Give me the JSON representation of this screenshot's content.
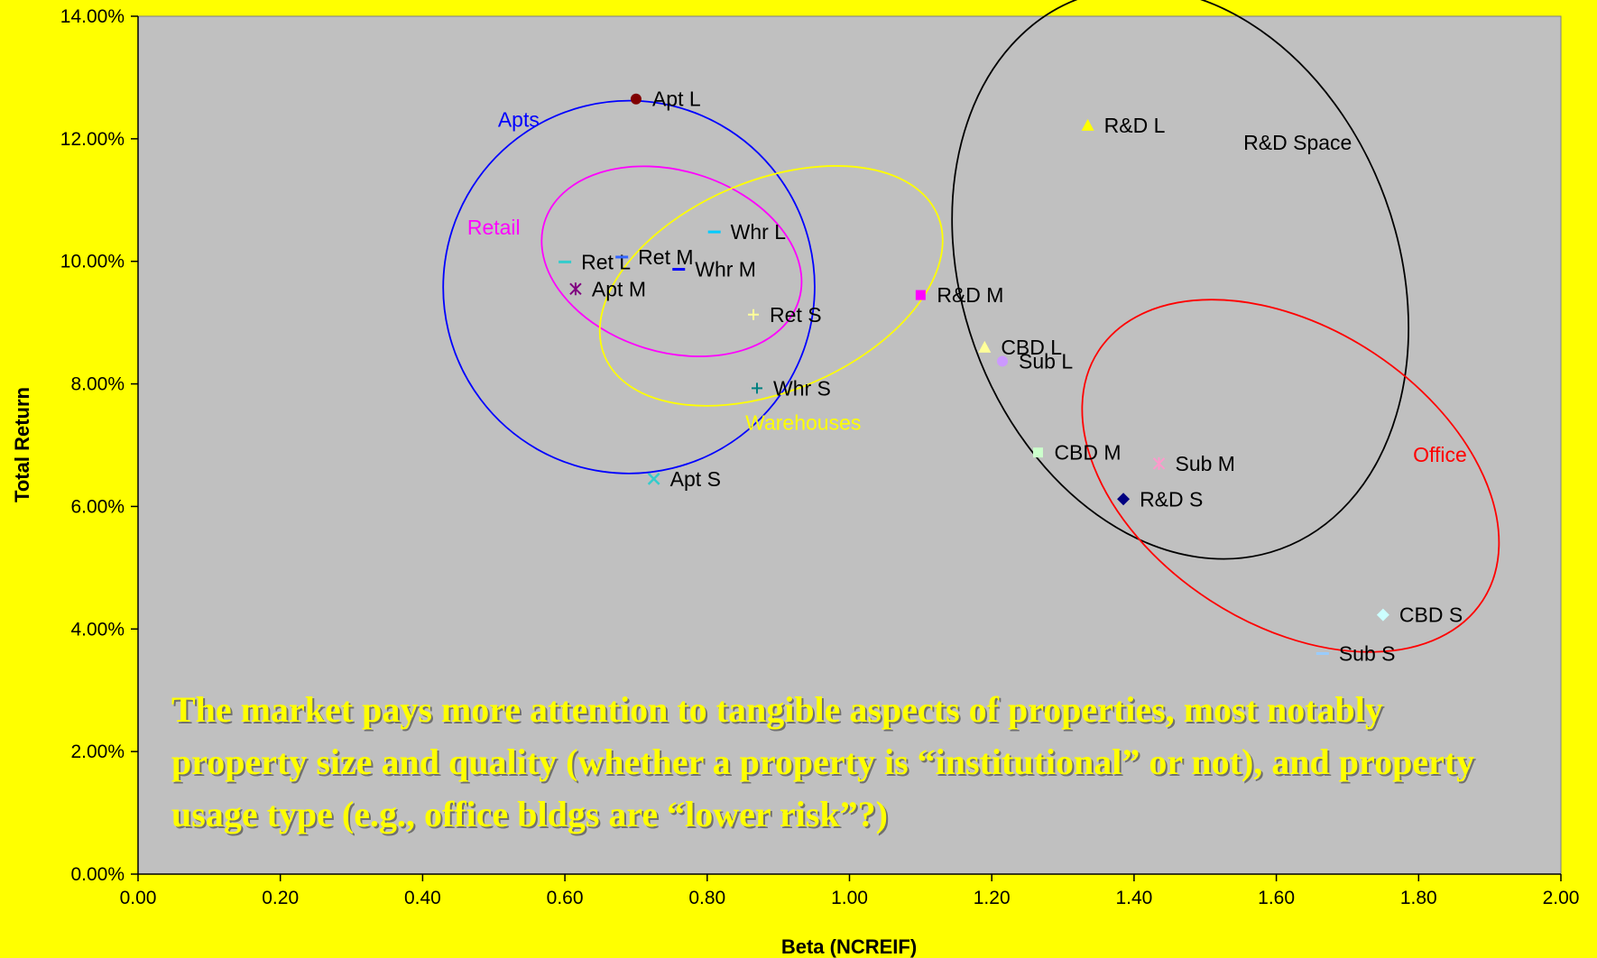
{
  "chart_data": {
    "type": "scatter",
    "title": "",
    "xlabel": "Beta (NCREIF)",
    "ylabel": "Total Return",
    "xlim": [
      0,
      2
    ],
    "ylim": [
      0,
      0.14
    ],
    "x_ticks": [
      "0.00",
      "0.20",
      "0.40",
      "0.60",
      "0.80",
      "1.00",
      "1.20",
      "1.40",
      "1.60",
      "1.80",
      "2.00"
    ],
    "y_ticks": [
      "0.00%",
      "2.00%",
      "4.00%",
      "6.00%",
      "8.00%",
      "10.00%",
      "12.00%",
      "14.00%"
    ],
    "grid": false,
    "legend": "none",
    "background": "#C0C0C0",
    "outer_background": "#FFFF00",
    "points": [
      {
        "label": "Apt L",
        "x": 0.7,
        "y": 0.1265,
        "marker": "circle",
        "color": "#800000"
      },
      {
        "label": "Apt M",
        "x": 0.615,
        "y": 0.0955,
        "marker": "asterisk",
        "color": "#800080"
      },
      {
        "label": "Apt S",
        "x": 0.725,
        "y": 0.0645,
        "marker": "x",
        "color": "#33CCCC"
      },
      {
        "label": "Ret L",
        "x": 0.6,
        "y": 0.0999,
        "marker": "dash",
        "color": "#33CCCC"
      },
      {
        "label": "Ret M",
        "x": 0.68,
        "y": 0.1007,
        "marker": "dash",
        "color": "#3366FF"
      },
      {
        "label": "Ret S",
        "x": 0.865,
        "y": 0.0913,
        "marker": "plus",
        "color": "#FFFF99"
      },
      {
        "label": "Whr L",
        "x": 0.81,
        "y": 0.1048,
        "marker": "dash",
        "color": "#00CCFF"
      },
      {
        "label": "Whr M",
        "x": 0.76,
        "y": 0.0987,
        "marker": "dash",
        "color": "#0000FF"
      },
      {
        "label": "Whr S",
        "x": 0.87,
        "y": 0.0793,
        "marker": "plus",
        "color": "#008080"
      },
      {
        "label": "R&D L",
        "x": 1.335,
        "y": 0.1222,
        "marker": "triangle",
        "color": "#FFFF00"
      },
      {
        "label": "R&D M",
        "x": 1.1,
        "y": 0.0945,
        "marker": "square",
        "color": "#FF00FF"
      },
      {
        "label": "R&D S",
        "x": 1.385,
        "y": 0.0612,
        "marker": "diamond",
        "color": "#000080"
      },
      {
        "label": "CBD L",
        "x": 1.19,
        "y": 0.086,
        "marker": "triangle",
        "color": "#FFFF99"
      },
      {
        "label": "CBD M",
        "x": 1.265,
        "y": 0.0688,
        "marker": "square",
        "color": "#CCFFCC"
      },
      {
        "label": "CBD S",
        "x": 1.75,
        "y": 0.0423,
        "marker": "diamond",
        "color": "#CCFFFF"
      },
      {
        "label": "Sub L",
        "x": 1.215,
        "y": 0.0837,
        "marker": "circle",
        "color": "#CC99FF"
      },
      {
        "label": "Sub M",
        "x": 1.435,
        "y": 0.067,
        "marker": "asterisk",
        "color": "#FF99CC"
      },
      {
        "label": "Sub S",
        "x": 1.665,
        "y": 0.036,
        "marker": "dash",
        "color": "#99CCFF"
      }
    ],
    "groups": [
      {
        "label": "Apts",
        "color": "#0000FF",
        "cx": 0.69,
        "cy": 0.0958,
        "rx": 0.262,
        "ry": 0.0303,
        "rot": 98,
        "lx": 0.535,
        "ly": 0.122
      },
      {
        "label": "Retail",
        "color": "#FF00FF",
        "cx": 0.75,
        "cy": 0.1,
        "rx": 0.187,
        "ry": 0.0148,
        "rot": 17,
        "lx": 0.5,
        "ly": 0.1044
      },
      {
        "label": "Warehouses",
        "color": "#FFFF00",
        "cx": 0.89,
        "cy": 0.096,
        "rx": 0.148,
        "ry": 0.0295,
        "rot": 67,
        "lx": 0.935,
        "ly": 0.0725
      },
      {
        "label": "R&D Space",
        "color": "#000000",
        "cx": 1.465,
        "cy": 0.098,
        "rx": 0.412,
        "ry": 0.0356,
        "rot": 70,
        "lx": 1.63,
        "ly": 0.1182
      },
      {
        "label": "Office",
        "color": "#FF0000",
        "cx": 1.62,
        "cy": 0.065,
        "rx": 0.322,
        "ry": 0.0242,
        "rot": 33,
        "lx": 1.83,
        "ly": 0.0673
      }
    ]
  },
  "annotation": "The market pays more attention to tangible aspects of properties, most notably property size and quality (whether a property is “institutional” or not), and property usage type (e.g., office bldgs are “lower risk”?)"
}
